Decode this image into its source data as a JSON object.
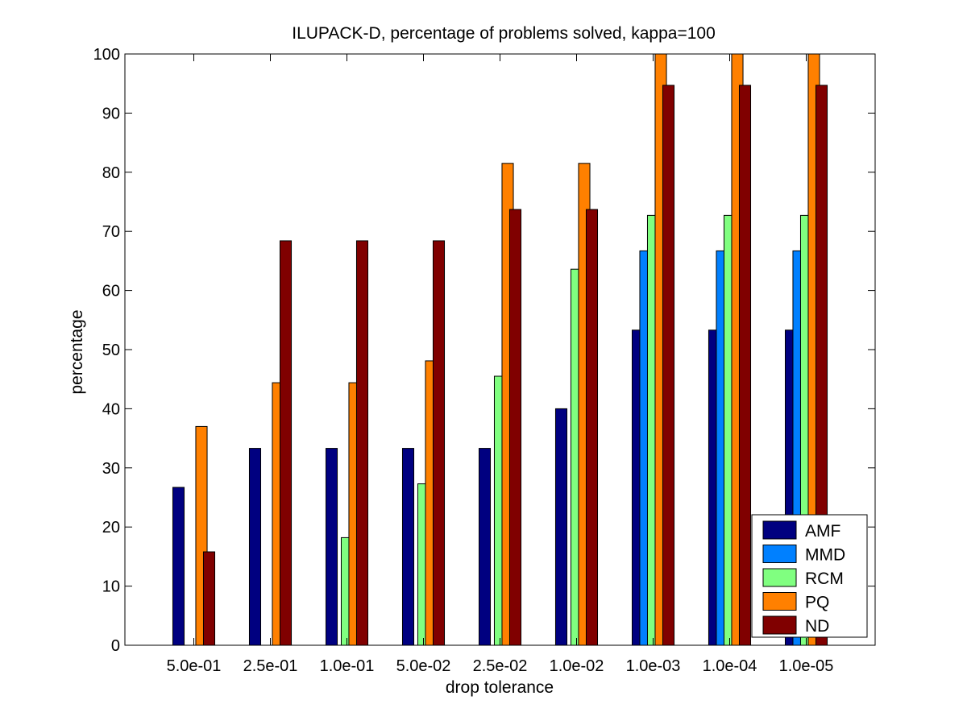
{
  "chart_data": {
    "type": "bar",
    "title": "ILUPACK-D, percentage of problems solved, kappa=100",
    "xlabel": "drop tolerance",
    "ylabel": "percentage",
    "ylim": [
      0,
      100
    ],
    "yticks": [
      0,
      10,
      20,
      30,
      40,
      50,
      60,
      70,
      80,
      90,
      100
    ],
    "categories": [
      "5.0e-01",
      "2.5e-01",
      "1.0e-01",
      "5.0e-02",
      "2.5e-02",
      "1.0e-02",
      "1.0e-03",
      "1.0e-04",
      "1.0e-05"
    ],
    "grid": false,
    "legend_position": "bottom-right",
    "series": [
      {
        "name": "AMF",
        "color": "#000080",
        "values": [
          26.7,
          33.3,
          33.3,
          33.3,
          33.3,
          40.0,
          53.3,
          53.3,
          53.3
        ]
      },
      {
        "name": "MMD",
        "color": "#0080ff",
        "values": [
          0,
          0,
          0,
          0,
          0,
          0,
          66.7,
          66.7,
          66.7
        ]
      },
      {
        "name": "RCM",
        "color": "#80ff80",
        "values": [
          0,
          0,
          18.2,
          27.3,
          45.5,
          63.6,
          72.7,
          72.7,
          72.7
        ]
      },
      {
        "name": "PQ",
        "color": "#ff8000",
        "values": [
          37.0,
          44.4,
          44.4,
          48.1,
          81.5,
          81.5,
          100,
          100,
          100
        ]
      },
      {
        "name": "ND",
        "color": "#800000",
        "values": [
          15.8,
          68.4,
          68.4,
          68.4,
          73.7,
          73.7,
          94.7,
          94.7,
          94.7
        ]
      }
    ]
  }
}
